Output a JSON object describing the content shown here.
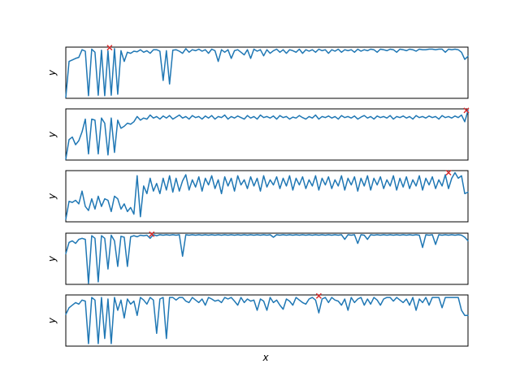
{
  "chart_data": [
    {
      "type": "line",
      "xlabel": "",
      "ylabel": "y",
      "ylim": [
        0.0,
        1.0
      ],
      "grid": false,
      "line_color": "#1f77b4",
      "marker_color": "#d62728",
      "marker_symbol": "x",
      "x": [
        0,
        4,
        8,
        12,
        16,
        20,
        24,
        28,
        32,
        36,
        40,
        44,
        48,
        52,
        56,
        60,
        64,
        68,
        72,
        76,
        80,
        84,
        88,
        92,
        96,
        100,
        104,
        108,
        112,
        116,
        120,
        124,
        128,
        132,
        136,
        140,
        144,
        148,
        152,
        156,
        160,
        164,
        168,
        172,
        176,
        180,
        184,
        188,
        192,
        196,
        200,
        204,
        208,
        212,
        216,
        220,
        224,
        228,
        232,
        236,
        240,
        244,
        248,
        252,
        256,
        260,
        264,
        268,
        272,
        276,
        280,
        284,
        288,
        292,
        296,
        300,
        304,
        308,
        312,
        316,
        320,
        324,
        328,
        332,
        336,
        340,
        344,
        348,
        352,
        356,
        360,
        364,
        368,
        372,
        376,
        380,
        384,
        388,
        392,
        396,
        400,
        404,
        408,
        412,
        416,
        420,
        424,
        428,
        432,
        436,
        440,
        444,
        448,
        452,
        456,
        460,
        464,
        468,
        472,
        476,
        480,
        484,
        488,
        492,
        496
      ],
      "y": [
        0.02,
        0.72,
        0.75,
        0.78,
        0.8,
        0.95,
        0.92,
        0.05,
        0.96,
        0.9,
        0.06,
        0.94,
        0.05,
        0.93,
        0.06,
        0.97,
        0.08,
        0.93,
        0.72,
        0.9,
        0.88,
        0.92,
        0.91,
        0.95,
        0.9,
        0.93,
        0.88,
        0.95,
        0.95,
        0.92,
        0.35,
        0.93,
        0.28,
        0.94,
        0.95,
        0.92,
        0.88,
        0.97,
        0.9,
        0.95,
        0.93,
        0.96,
        0.92,
        0.95,
        0.88,
        0.96,
        0.93,
        0.72,
        0.95,
        0.9,
        0.95,
        0.78,
        0.93,
        0.95,
        0.9,
        0.85,
        0.95,
        0.78,
        0.96,
        0.92,
        0.95,
        0.83,
        0.95,
        0.88,
        0.93,
        0.96,
        0.9,
        0.95,
        0.88,
        0.95,
        0.93,
        0.9,
        0.96,
        0.88,
        0.95,
        0.92,
        0.95,
        0.9,
        0.96,
        0.93,
        0.95,
        0.88,
        0.95,
        0.92,
        0.96,
        0.9,
        0.95,
        0.93,
        0.95,
        0.9,
        0.96,
        0.92,
        0.95,
        0.93,
        0.96,
        0.95,
        0.9,
        0.96,
        0.95,
        0.93,
        0.96,
        0.95,
        0.9,
        0.96,
        0.95,
        0.93,
        0.96,
        0.95,
        0.92,
        0.96,
        0.95,
        0.95,
        0.96,
        0.96,
        0.95,
        0.96,
        0.96,
        0.9,
        0.96,
        0.95,
        0.96,
        0.95,
        0.9,
        0.76,
        0.82
      ],
      "marker": {
        "x": 54,
        "y": 0.99
      }
    },
    {
      "type": "line",
      "xlabel": "",
      "ylabel": "y",
      "ylim": [
        0.0,
        1.0
      ],
      "grid": false,
      "line_color": "#1f77b4",
      "marker_color": "#d62728",
      "marker_symbol": "x",
      "x": [
        0,
        4,
        8,
        12,
        16,
        20,
        24,
        28,
        32,
        36,
        40,
        44,
        48,
        52,
        56,
        60,
        64,
        68,
        72,
        76,
        80,
        84,
        88,
        92,
        96,
        100,
        104,
        108,
        112,
        116,
        120,
        124,
        128,
        132,
        136,
        140,
        144,
        148,
        152,
        156,
        160,
        164,
        168,
        172,
        176,
        180,
        184,
        188,
        192,
        196,
        200,
        204,
        208,
        212,
        216,
        220,
        224,
        228,
        232,
        236,
        240,
        244,
        248,
        252,
        256,
        260,
        264,
        268,
        272,
        276,
        280,
        284,
        288,
        292,
        296,
        300,
        304,
        308,
        312,
        316,
        320,
        324,
        328,
        332,
        336,
        340,
        344,
        348,
        352,
        356,
        360,
        364,
        368,
        372,
        376,
        380,
        384,
        388,
        392,
        396,
        400,
        404,
        408,
        412,
        416,
        420,
        424,
        428,
        432,
        436,
        440,
        444,
        448,
        452,
        456,
        460,
        464,
        468,
        472,
        476,
        480,
        484,
        488,
        492,
        496
      ],
      "y": [
        0.02,
        0.4,
        0.45,
        0.3,
        0.38,
        0.55,
        0.8,
        0.12,
        0.8,
        0.78,
        0.12,
        0.82,
        0.72,
        0.1,
        0.82,
        0.15,
        0.78,
        0.62,
        0.66,
        0.72,
        0.7,
        0.75,
        0.85,
        0.78,
        0.82,
        0.8,
        0.88,
        0.82,
        0.85,
        0.8,
        0.86,
        0.82,
        0.87,
        0.8,
        0.84,
        0.88,
        0.82,
        0.85,
        0.8,
        0.87,
        0.83,
        0.85,
        0.8,
        0.86,
        0.82,
        0.87,
        0.8,
        0.85,
        0.83,
        0.88,
        0.8,
        0.85,
        0.82,
        0.86,
        0.83,
        0.8,
        0.87,
        0.82,
        0.85,
        0.8,
        0.88,
        0.83,
        0.85,
        0.82,
        0.86,
        0.8,
        0.87,
        0.83,
        0.85,
        0.8,
        0.84,
        0.82,
        0.87,
        0.83,
        0.8,
        0.85,
        0.82,
        0.88,
        0.8,
        0.85,
        0.83,
        0.86,
        0.82,
        0.85,
        0.8,
        0.87,
        0.83,
        0.85,
        0.82,
        0.86,
        0.8,
        0.84,
        0.87,
        0.82,
        0.85,
        0.8,
        0.86,
        0.83,
        0.85,
        0.82,
        0.87,
        0.8,
        0.85,
        0.83,
        0.86,
        0.82,
        0.85,
        0.8,
        0.87,
        0.83,
        0.85,
        0.82,
        0.86,
        0.83,
        0.85,
        0.8,
        0.87,
        0.83,
        0.85,
        0.82,
        0.86,
        0.83,
        0.88,
        0.75,
        0.97
      ],
      "marker": {
        "x": 494,
        "y": 0.97
      }
    },
    {
      "type": "line",
      "xlabel": "",
      "ylabel": "y",
      "ylim": [
        0.0,
        1.0
      ],
      "grid": false,
      "line_color": "#1f77b4",
      "marker_color": "#d62728",
      "marker_symbol": "x",
      "x": [
        0,
        4,
        8,
        12,
        16,
        20,
        24,
        28,
        32,
        36,
        40,
        44,
        48,
        52,
        56,
        60,
        64,
        68,
        72,
        76,
        80,
        84,
        88,
        92,
        96,
        100,
        104,
        108,
        112,
        116,
        120,
        124,
        128,
        132,
        136,
        140,
        144,
        148,
        152,
        156,
        160,
        164,
        168,
        172,
        176,
        180,
        184,
        188,
        192,
        196,
        200,
        204,
        208,
        212,
        216,
        220,
        224,
        228,
        232,
        236,
        240,
        244,
        248,
        252,
        256,
        260,
        264,
        268,
        272,
        276,
        280,
        284,
        288,
        292,
        296,
        300,
        304,
        308,
        312,
        316,
        320,
        324,
        328,
        332,
        336,
        340,
        344,
        348,
        352,
        356,
        360,
        364,
        368,
        372,
        376,
        380,
        384,
        388,
        392,
        396,
        400,
        404,
        408,
        412,
        416,
        420,
        424,
        428,
        432,
        436,
        440,
        444,
        448,
        452,
        456,
        460,
        464,
        468,
        472,
        476,
        480,
        484,
        488,
        492,
        496
      ],
      "y": [
        0.05,
        0.4,
        0.38,
        0.42,
        0.35,
        0.6,
        0.3,
        0.22,
        0.45,
        0.25,
        0.5,
        0.3,
        0.45,
        0.42,
        0.2,
        0.5,
        0.45,
        0.25,
        0.35,
        0.2,
        0.28,
        0.15,
        0.9,
        0.1,
        0.7,
        0.55,
        0.85,
        0.6,
        0.75,
        0.55,
        0.85,
        0.62,
        0.9,
        0.58,
        0.85,
        0.6,
        0.8,
        0.92,
        0.62,
        0.82,
        0.68,
        0.88,
        0.6,
        0.85,
        0.72,
        0.9,
        0.65,
        0.82,
        0.55,
        0.88,
        0.7,
        0.85,
        0.6,
        0.9,
        0.72,
        0.82,
        0.65,
        0.88,
        0.7,
        0.85,
        0.6,
        0.9,
        0.68,
        0.82,
        0.72,
        0.88,
        0.65,
        0.85,
        0.7,
        0.9,
        0.62,
        0.85,
        0.72,
        0.88,
        0.65,
        0.82,
        0.7,
        0.9,
        0.62,
        0.85,
        0.72,
        0.88,
        0.65,
        0.82,
        0.7,
        0.9,
        0.62,
        0.85,
        0.72,
        0.88,
        0.6,
        0.85,
        0.7,
        0.9,
        0.62,
        0.85,
        0.72,
        0.88,
        0.65,
        0.82,
        0.7,
        0.9,
        0.62,
        0.85,
        0.68,
        0.88,
        0.65,
        0.82,
        0.7,
        0.9,
        0.62,
        0.85,
        0.72,
        0.88,
        0.65,
        0.82,
        0.7,
        0.92,
        0.65,
        0.85,
        0.96,
        0.85,
        0.9,
        0.55,
        0.58
      ],
      "marker": {
        "x": 472,
        "y": 0.96
      }
    },
    {
      "type": "line",
      "xlabel": "",
      "ylabel": "y",
      "ylim": [
        0.0,
        1.0
      ],
      "grid": false,
      "line_color": "#1f77b4",
      "marker_color": "#d62728",
      "marker_symbol": "x",
      "x": [
        0,
        4,
        8,
        12,
        16,
        20,
        24,
        28,
        32,
        36,
        40,
        44,
        48,
        52,
        56,
        60,
        64,
        68,
        72,
        76,
        80,
        84,
        88,
        92,
        96,
        100,
        104,
        108,
        112,
        116,
        120,
        124,
        128,
        132,
        136,
        140,
        144,
        148,
        152,
        156,
        160,
        164,
        168,
        172,
        176,
        180,
        184,
        188,
        192,
        196,
        200,
        204,
        208,
        212,
        216,
        220,
        224,
        228,
        232,
        236,
        240,
        244,
        248,
        252,
        256,
        260,
        264,
        268,
        272,
        276,
        280,
        284,
        288,
        292,
        296,
        300,
        304,
        308,
        312,
        316,
        320,
        324,
        328,
        332,
        336,
        340,
        344,
        348,
        352,
        356,
        360,
        364,
        368,
        372,
        376,
        380,
        384,
        388,
        392,
        396,
        400,
        404,
        408,
        412,
        416,
        420,
        424,
        428,
        432,
        436,
        440,
        444,
        448,
        452,
        456,
        460,
        464,
        468,
        472,
        476,
        480,
        484,
        488,
        492,
        496
      ],
      "y": [
        0.6,
        0.82,
        0.85,
        0.8,
        0.88,
        0.9,
        0.88,
        0.02,
        0.95,
        0.9,
        0.05,
        0.95,
        0.9,
        0.3,
        0.96,
        0.85,
        0.35,
        0.94,
        0.92,
        0.35,
        0.93,
        0.95,
        0.93,
        0.96,
        0.95,
        0.96,
        0.9,
        0.97,
        0.95,
        0.97,
        0.96,
        0.97,
        0.96,
        0.97,
        0.96,
        0.97,
        0.55,
        0.97,
        0.96,
        0.97,
        0.96,
        0.97,
        0.96,
        0.97,
        0.96,
        0.97,
        0.96,
        0.97,
        0.96,
        0.97,
        0.96,
        0.97,
        0.96,
        0.97,
        0.96,
        0.97,
        0.96,
        0.97,
        0.96,
        0.97,
        0.96,
        0.97,
        0.96,
        0.97,
        0.92,
        0.97,
        0.96,
        0.97,
        0.96,
        0.97,
        0.96,
        0.97,
        0.96,
        0.97,
        0.96,
        0.97,
        0.96,
        0.97,
        0.96,
        0.97,
        0.96,
        0.97,
        0.96,
        0.97,
        0.96,
        0.97,
        0.88,
        0.97,
        0.96,
        0.97,
        0.8,
        0.97,
        0.96,
        0.88,
        0.97,
        0.96,
        0.97,
        0.96,
        0.97,
        0.96,
        0.97,
        0.96,
        0.97,
        0.96,
        0.97,
        0.96,
        0.97,
        0.96,
        0.97,
        0.96,
        0.72,
        0.97,
        0.96,
        0.97,
        0.78,
        0.97,
        0.96,
        0.97,
        0.96,
        0.97,
        0.96,
        0.97,
        0.96,
        0.92,
        0.85
      ],
      "marker": {
        "x": 106,
        "y": 0.98
      }
    },
    {
      "type": "line",
      "xlabel": "x",
      "ylabel": "y",
      "ylim": [
        0.0,
        1.0
      ],
      "grid": false,
      "line_color": "#1f77b4",
      "marker_color": "#d62728",
      "marker_symbol": "x",
      "x": [
        0,
        4,
        8,
        12,
        16,
        20,
        24,
        28,
        32,
        36,
        40,
        44,
        48,
        52,
        56,
        60,
        64,
        68,
        72,
        76,
        80,
        84,
        88,
        92,
        96,
        100,
        104,
        108,
        112,
        116,
        120,
        124,
        128,
        132,
        136,
        140,
        144,
        148,
        152,
        156,
        160,
        164,
        168,
        172,
        176,
        180,
        184,
        188,
        192,
        196,
        200,
        204,
        208,
        212,
        216,
        220,
        224,
        228,
        232,
        236,
        240,
        244,
        248,
        252,
        256,
        260,
        264,
        268,
        272,
        276,
        280,
        284,
        288,
        292,
        296,
        300,
        304,
        308,
        312,
        316,
        320,
        324,
        328,
        332,
        336,
        340,
        344,
        348,
        352,
        356,
        360,
        364,
        368,
        372,
        376,
        380,
        384,
        388,
        392,
        396,
        400,
        404,
        408,
        412,
        416,
        420,
        424,
        428,
        432,
        436,
        440,
        444,
        448,
        452,
        456,
        460,
        464,
        468,
        472,
        476,
        480,
        484,
        488,
        492,
        496
      ],
      "y": [
        0.62,
        0.75,
        0.8,
        0.85,
        0.82,
        0.9,
        0.88,
        0.05,
        0.95,
        0.9,
        0.05,
        0.95,
        0.15,
        0.92,
        0.05,
        0.95,
        0.7,
        0.9,
        0.55,
        0.92,
        0.82,
        0.88,
        0.6,
        0.95,
        0.9,
        0.82,
        0.95,
        0.9,
        0.25,
        0.92,
        0.95,
        0.15,
        0.95,
        0.95,
        0.9,
        0.95,
        0.95,
        0.88,
        0.85,
        0.95,
        0.9,
        0.85,
        0.92,
        0.8,
        0.95,
        0.92,
        0.88,
        0.9,
        0.85,
        0.95,
        0.92,
        0.95,
        0.88,
        0.8,
        0.95,
        0.85,
        0.92,
        0.88,
        0.9,
        0.7,
        0.92,
        0.88,
        0.7,
        0.95,
        0.85,
        0.9,
        0.8,
        0.72,
        0.92,
        0.88,
        0.8,
        0.95,
        0.9,
        0.85,
        0.82,
        0.92,
        0.95,
        0.9,
        0.65,
        0.92,
        0.95,
        0.85,
        0.95,
        0.9,
        0.88,
        0.8,
        0.92,
        0.7,
        0.95,
        0.85,
        0.92,
        0.95,
        0.8,
        0.92,
        0.82,
        0.95,
        0.9,
        0.8,
        0.92,
        0.95,
        0.95,
        0.88,
        0.95,
        0.9,
        0.85,
        0.92,
        0.8,
        0.95,
        0.7,
        0.92,
        0.85,
        0.95,
        0.8,
        0.95,
        0.95,
        0.95,
        0.75,
        0.95,
        0.95,
        0.95,
        0.95,
        0.95,
        0.7,
        0.6,
        0.6
      ],
      "marker": {
        "x": 312,
        "y": 0.98
      }
    }
  ]
}
